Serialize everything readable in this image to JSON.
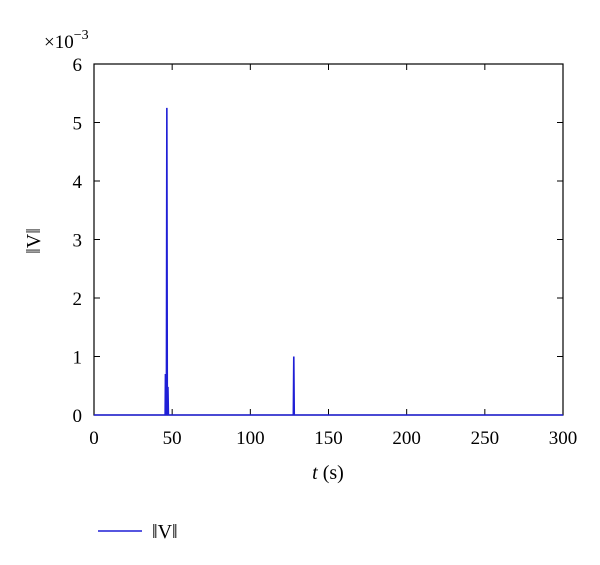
{
  "chart_data": {
    "type": "line",
    "title": "",
    "xlabel": {
      "var": "t",
      "unit": " (s)"
    },
    "ylabel": "‖V‖",
    "y_multiplier": {
      "base": "×10",
      "exponent": "−3"
    },
    "xlim": [
      0,
      300
    ],
    "ylim": [
      0,
      0.006
    ],
    "x_ticks": [
      0,
      50,
      100,
      150,
      200,
      250,
      300
    ],
    "x_tick_labels": [
      "0",
      "50",
      "100",
      "150",
      "200",
      "250",
      "300"
    ],
    "y_ticks": [
      0,
      0.001,
      0.002,
      0.003,
      0.004,
      0.005,
      0.006
    ],
    "y_tick_labels": [
      "0",
      "1",
      "2",
      "3",
      "4",
      "5",
      "6"
    ],
    "grid": false,
    "legend_position": "bottom-left",
    "series": [
      {
        "name": "‖V‖",
        "color": "#1f1fd6",
        "x": [
          0,
          45.5,
          45.7,
          45.9,
          46.3,
          46.6,
          46.9,
          47.3,
          47.6,
          48.0,
          127.5,
          127.8,
          128.1,
          300
        ],
        "y": [
          0,
          0,
          0.0007,
          0,
          0,
          0.00525,
          0,
          0.00048,
          0,
          0,
          0,
          0.001,
          0,
          0
        ]
      }
    ]
  }
}
